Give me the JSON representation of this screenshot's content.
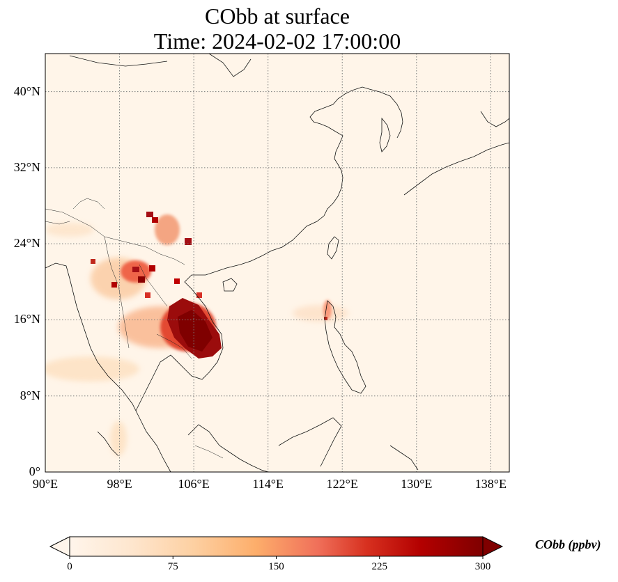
{
  "title_line1": "CObb at surface",
  "title_line2": "Time: 2024-02-02 17:00:00",
  "map": {
    "projection": "PlateCarree",
    "extent": {
      "lon": [
        90,
        140
      ],
      "lat": [
        0,
        44
      ]
    },
    "gridlines": "dotted",
    "lat_ticks": [
      {
        "value": 40,
        "label": "40°N"
      },
      {
        "value": 32,
        "label": "32°N"
      },
      {
        "value": 24,
        "label": "24°N"
      },
      {
        "value": 16,
        "label": "16°N"
      },
      {
        "value": 8,
        "label": "8°N"
      },
      {
        "value": 0,
        "label": "0°"
      }
    ],
    "lon_ticks": [
      {
        "value": 90,
        "label": "90°E"
      },
      {
        "value": 98,
        "label": "98°E"
      },
      {
        "value": 106,
        "label": "106°E"
      },
      {
        "value": 114,
        "label": "114°E"
      },
      {
        "value": 122,
        "label": "122°E"
      },
      {
        "value": 130,
        "label": "130°E"
      },
      {
        "value": 138,
        "label": "138°E"
      }
    ],
    "colors": {
      "background": "#fff5e9",
      "coast": "#111111",
      "grid": "#7a7a7a"
    }
  },
  "colorbar": {
    "label": "CObb (ppbv)",
    "min": 0,
    "max": 300,
    "extend": "both",
    "ticks": [
      "0",
      "75",
      "150",
      "225",
      "300"
    ],
    "colormap": [
      "#fff5eb",
      "#fee6ce",
      "#fdd0a2",
      "#fdae6b",
      "#fd8d3c",
      "#f16913",
      "#d94801",
      "#b10000",
      "#7f0000"
    ]
  }
}
